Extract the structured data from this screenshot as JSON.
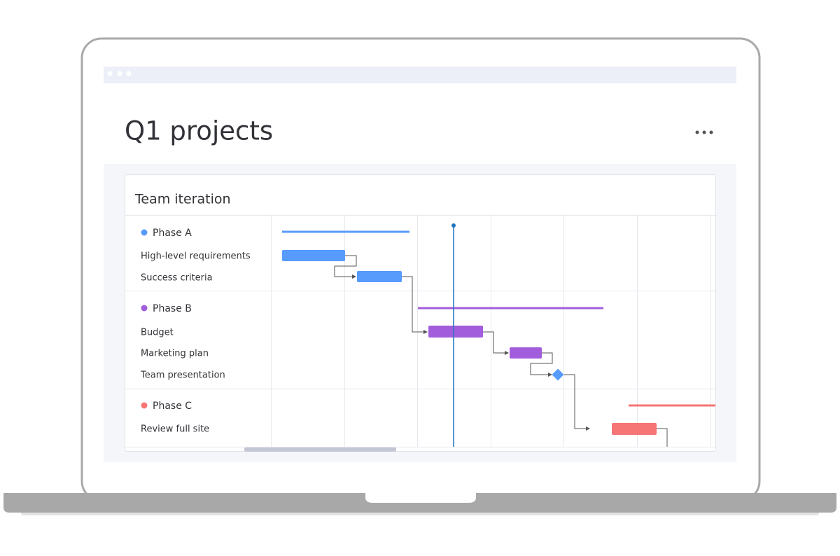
{
  "header": {
    "title": "Q1 projects"
  },
  "panel": {
    "title": "Team iteration"
  },
  "groups": [
    {
      "name": "Phase A",
      "tasks": [
        "High-level requirements",
        "Success criteria"
      ]
    },
    {
      "name": "Phase B",
      "tasks": [
        "Budget",
        "Marketing plan",
        "Team presentation"
      ]
    },
    {
      "name": "Phase C",
      "tasks": [
        "Review full site"
      ]
    }
  ]
}
